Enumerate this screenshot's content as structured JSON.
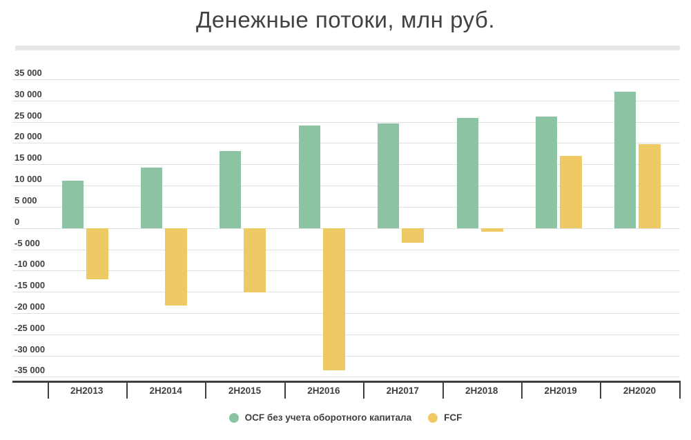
{
  "title": "Денежные потоки, млн руб.",
  "chart_data": {
    "type": "bar",
    "title": "Денежные потоки, млн руб.",
    "categories": [
      "2H2013",
      "2H2014",
      "2H2015",
      "2H2016",
      "2H2017",
      "2H2018",
      "2H2019",
      "2H2020"
    ],
    "series": [
      {
        "name": "OCF без учета оборотного капитала",
        "color": "#8cc3a2",
        "values": [
          11200,
          14200,
          18100,
          24200,
          24600,
          25900,
          26300,
          32100
        ]
      },
      {
        "name": "FCF",
        "color": "#eeca67",
        "values": [
          -12000,
          -18300,
          -15200,
          -33400,
          -3500,
          -800,
          17000,
          19700
        ]
      }
    ],
    "ylabel": "",
    "xlabel": "",
    "ylim": [
      -35000,
      35000
    ],
    "ytick_step": 5000,
    "grid": true,
    "legend_position": "bottom",
    "units": "млн руб."
  }
}
